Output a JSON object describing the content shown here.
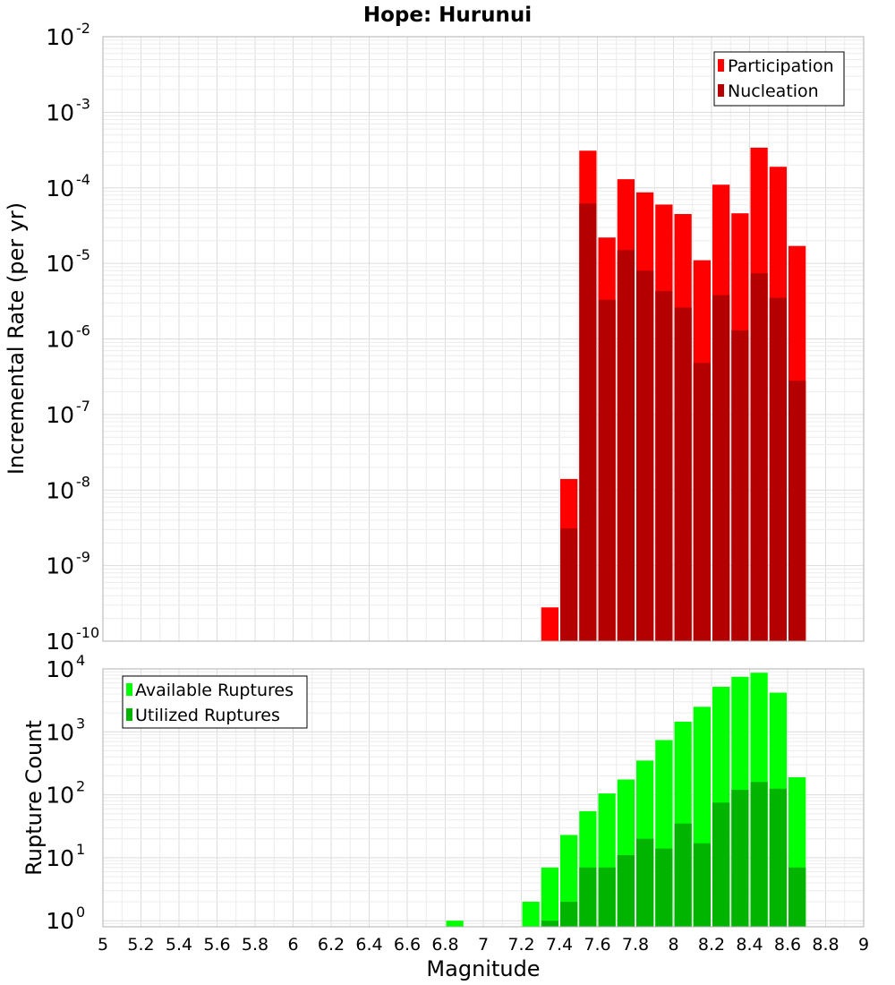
{
  "chart_data": [
    {
      "type": "bar",
      "title": "Hope: Hurunui",
      "xlabel": "",
      "ylabel": "Incremental Rate (per yr)",
      "xlim": [
        5,
        9
      ],
      "ylim": [
        1e-10,
        0.01
      ],
      "yscale": "log",
      "grid": true,
      "legend_position": "top-right",
      "bin_width": 0.1,
      "y_ticks": [
        {
          "value": 1e-10,
          "base": "10",
          "exp": "-10"
        },
        {
          "value": 1e-09,
          "base": "10",
          "exp": "-9"
        },
        {
          "value": 1e-08,
          "base": "10",
          "exp": "-8"
        },
        {
          "value": 1e-07,
          "base": "10",
          "exp": "-7"
        },
        {
          "value": 1e-06,
          "base": "10",
          "exp": "-6"
        },
        {
          "value": 1e-05,
          "base": "10",
          "exp": "-5"
        },
        {
          "value": 0.0001,
          "base": "10",
          "exp": "-4"
        },
        {
          "value": 0.001,
          "base": "10",
          "exp": "-3"
        },
        {
          "value": 0.01,
          "base": "10",
          "exp": "-2"
        }
      ],
      "series": [
        {
          "name": "Participation",
          "color": "#ff0000",
          "points": [
            {
              "x": 7.35,
              "y": 2.8e-10
            },
            {
              "x": 7.45,
              "y": 1.4e-08
            },
            {
              "x": 7.55,
              "y": 0.00031
            },
            {
              "x": 7.65,
              "y": 2.2e-05
            },
            {
              "x": 7.75,
              "y": 0.00013
            },
            {
              "x": 7.85,
              "y": 8.7e-05
            },
            {
              "x": 7.95,
              "y": 6e-05
            },
            {
              "x": 8.05,
              "y": 4.5e-05
            },
            {
              "x": 8.15,
              "y": 1.1e-05
            },
            {
              "x": 8.25,
              "y": 0.00011
            },
            {
              "x": 8.35,
              "y": 4.6e-05
            },
            {
              "x": 8.45,
              "y": 0.00034
            },
            {
              "x": 8.55,
              "y": 0.00019
            },
            {
              "x": 8.65,
              "y": 1.7e-05
            }
          ]
        },
        {
          "name": "Nucleation",
          "color": "#b40000",
          "points": [
            {
              "x": 7.45,
              "y": 3.1e-09
            },
            {
              "x": 7.55,
              "y": 6.2e-05
            },
            {
              "x": 7.65,
              "y": 3.3e-06
            },
            {
              "x": 7.75,
              "y": 1.5e-05
            },
            {
              "x": 7.85,
              "y": 8e-06
            },
            {
              "x": 7.95,
              "y": 4.3e-06
            },
            {
              "x": 8.05,
              "y": 2.6e-06
            },
            {
              "x": 8.15,
              "y": 4.8e-07
            },
            {
              "x": 8.25,
              "y": 3.8e-06
            },
            {
              "x": 8.35,
              "y": 1.3e-06
            },
            {
              "x": 8.45,
              "y": 7.4e-06
            },
            {
              "x": 8.55,
              "y": 3.5e-06
            },
            {
              "x": 8.65,
              "y": 2.8e-07
            }
          ]
        }
      ]
    },
    {
      "type": "bar",
      "title": "",
      "xlabel": "Magnitude",
      "ylabel": "Rupture Count",
      "xlim": [
        5,
        9
      ],
      "ylim": [
        0.8,
        10000
      ],
      "yscale": "log",
      "grid": true,
      "legend_position": "top-left",
      "bin_width": 0.1,
      "x_ticks": [
        "5",
        "5.2",
        "5.4",
        "5.6",
        "5.8",
        "6",
        "6.2",
        "6.4",
        "6.6",
        "6.8",
        "7",
        "7.2",
        "7.4",
        "7.6",
        "7.8",
        "8",
        "8.2",
        "8.4",
        "8.6",
        "8.8",
        "9"
      ],
      "y_ticks": [
        {
          "value": 1,
          "base": "10",
          "exp": "0"
        },
        {
          "value": 10,
          "base": "10",
          "exp": "1"
        },
        {
          "value": 100,
          "base": "10",
          "exp": "2"
        },
        {
          "value": 1000,
          "base": "10",
          "exp": "3"
        },
        {
          "value": 10000,
          "base": "10",
          "exp": "4"
        }
      ],
      "series": [
        {
          "name": "Available Ruptures",
          "color": "#00ff00",
          "points": [
            {
              "x": 6.85,
              "y": 1
            },
            {
              "x": 7.25,
              "y": 2
            },
            {
              "x": 7.35,
              "y": 7
            },
            {
              "x": 7.45,
              "y": 23
            },
            {
              "x": 7.55,
              "y": 55
            },
            {
              "x": 7.65,
              "y": 105
            },
            {
              "x": 7.75,
              "y": 175
            },
            {
              "x": 7.85,
              "y": 350
            },
            {
              "x": 7.95,
              "y": 740
            },
            {
              "x": 8.05,
              "y": 1450
            },
            {
              "x": 8.15,
              "y": 2500
            },
            {
              "x": 8.25,
              "y": 5200
            },
            {
              "x": 8.35,
              "y": 7500
            },
            {
              "x": 8.45,
              "y": 8700
            },
            {
              "x": 8.55,
              "y": 4200
            },
            {
              "x": 8.65,
              "y": 190
            }
          ]
        },
        {
          "name": "Utilized Ruptures",
          "color": "#00b400",
          "points": [
            {
              "x": 7.35,
              "y": 1
            },
            {
              "x": 7.45,
              "y": 2
            },
            {
              "x": 7.55,
              "y": 7
            },
            {
              "x": 7.65,
              "y": 7
            },
            {
              "x": 7.75,
              "y": 11
            },
            {
              "x": 7.85,
              "y": 20
            },
            {
              "x": 7.95,
              "y": 14
            },
            {
              "x": 8.05,
              "y": 35
            },
            {
              "x": 8.15,
              "y": 17
            },
            {
              "x": 8.25,
              "y": 75
            },
            {
              "x": 8.35,
              "y": 120
            },
            {
              "x": 8.45,
              "y": 160
            },
            {
              "x": 8.55,
              "y": 125
            },
            {
              "x": 8.65,
              "y": 7
            }
          ]
        }
      ]
    }
  ]
}
